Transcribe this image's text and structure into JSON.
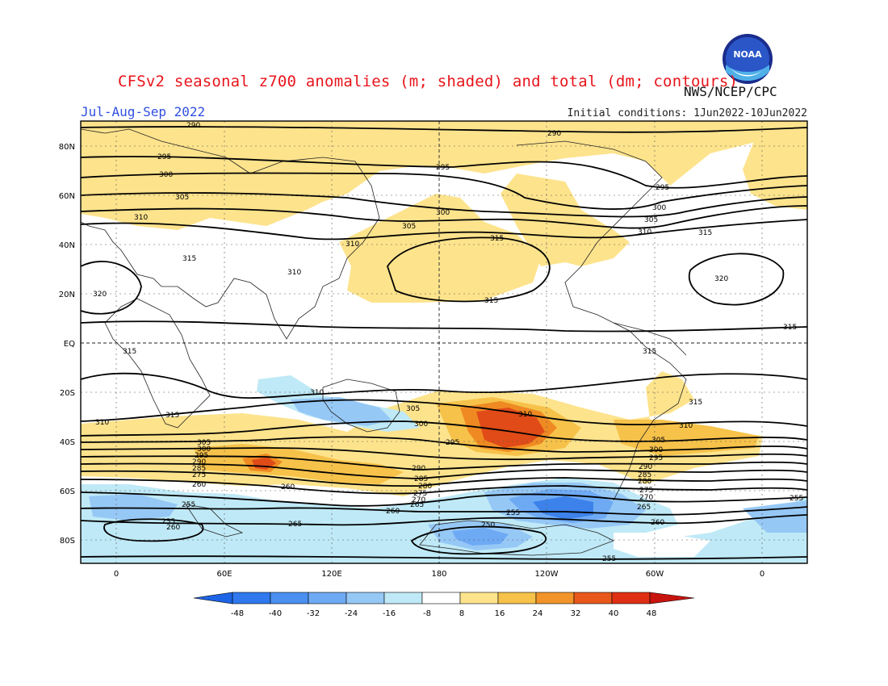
{
  "title": "CFSv2 seasonal z700 anomalies (m; shaded) and total (dm; contours)",
  "agency": "NWS/NCEP/CPC",
  "season": "Jul-Aug-Sep 2022",
  "initial_conditions": "Initial conditions: 1Jun2022-10Jun2022",
  "logo_text": "NOAA",
  "lat_labels": [
    "80N",
    "60N",
    "40N",
    "20N",
    "EQ",
    "20S",
    "40S",
    "60S",
    "80S"
  ],
  "lon_labels": [
    "0",
    "60E",
    "120E",
    "180",
    "120W",
    "60W",
    "0"
  ],
  "colorbar": {
    "ticks": [
      "-48",
      "-40",
      "-32",
      "-24",
      "-16",
      "-8",
      "8",
      "16",
      "24",
      "32",
      "40",
      "48"
    ],
    "colors": [
      "#1e64e6",
      "#2f78ee",
      "#4a90f0",
      "#6eaaf4",
      "#96c8f6",
      "#bfe9f6",
      "#ffffff",
      "#fde38c",
      "#f6c24a",
      "#f2942a",
      "#e8581b",
      "#e03014",
      "#c8140e"
    ]
  },
  "contour_labels": [
    "290",
    "295",
    "300",
    "305",
    "310",
    "315",
    "320",
    "315",
    "310",
    "305",
    "300",
    "295",
    "290",
    "285",
    "280",
    "275",
    "270",
    "265",
    "260",
    "255",
    "250"
  ],
  "anomaly_colors": {
    "positive_weak": "#fde38c",
    "positive_mid": "#f6c24a",
    "positive_strong": "#ef8a22",
    "positive_max": "#e04b18",
    "negative_weak": "#bfe9f6",
    "negative_mid": "#96c8f6",
    "negative_strong": "#6eaaf4",
    "negative_max": "#3c82ea"
  }
}
